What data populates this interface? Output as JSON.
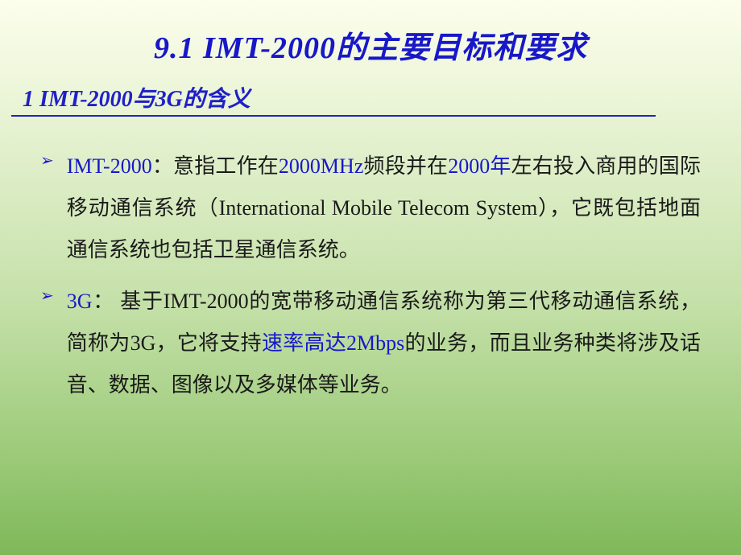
{
  "title": "9.1  IMT-2000的主要目标和要求",
  "subtitle": "1  IMT-2000与3G的含义",
  "bullets": [
    {
      "parts": [
        {
          "text": "IMT-2000",
          "blue": true
        },
        {
          "text": "：意指工作在",
          "blue": false
        },
        {
          "text": "2000MHz",
          "blue": true
        },
        {
          "text": "频段并在",
          "blue": false
        },
        {
          "text": "2000年",
          "blue": true
        },
        {
          "text": "左右投入商用的国际移动通信系统（International Mobile Telecom System），它既包括地面通信系统也包括卫星通信系统。",
          "blue": false
        }
      ]
    },
    {
      "parts": [
        {
          "text": "3G",
          "blue": true
        },
        {
          "text": "： 基于IMT-2000的宽带移动通信系统称为第三代移动通信系统，简称为3G，它将支持",
          "blue": false
        },
        {
          "text": "速率高达2Mbps",
          "blue": true
        },
        {
          "text": "的业务，而且业务种类将涉及话音、数据、图像以及多媒体等业务。",
          "blue": false
        }
      ]
    }
  ],
  "colors": {
    "title_color": "#1818c8",
    "text_color": "#1a1a1a",
    "highlight_color": "#1818c8"
  }
}
